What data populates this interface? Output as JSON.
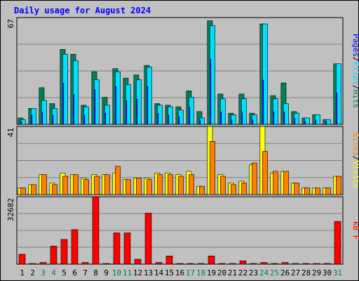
{
  "chart_data": {
    "type": "bar",
    "title": "Daily usage for August 2024",
    "categories": [
      "1",
      "2",
      "3",
      "4",
      "5",
      "6",
      "7",
      "8",
      "9",
      "10",
      "11",
      "12",
      "13",
      "14",
      "15",
      "16",
      "17",
      "18",
      "19",
      "20",
      "21",
      "22",
      "23",
      "24",
      "25",
      "26",
      "27",
      "28",
      "29",
      "30",
      "31"
    ],
    "weekend_days": [
      "3",
      "4",
      "10",
      "11",
      "17",
      "18",
      "24",
      "25",
      "31"
    ],
    "panels": [
      {
        "id": "hits-files-pages",
        "ylabel_parts": [
          "Pages",
          "/",
          "Files",
          "/",
          "Hits"
        ],
        "y_tick_label": "67",
        "ylim": [
          0,
          67
        ],
        "series": [
          {
            "name": "Hits",
            "color": "#00805c",
            "values": [
              4,
              10,
              23,
              13,
              47,
              44,
              12,
              33,
              17,
              35,
              29,
              31,
              37,
              13,
              12,
              11,
              21,
              8,
              65,
              19,
              7,
              19,
              7,
              63,
              18,
              26,
              8,
              4,
              6,
              3,
              38
            ]
          },
          {
            "name": "Files",
            "color": "#00e0ff",
            "values": [
              3,
              10,
              15,
              10,
              44,
              40,
              11,
              28,
              12,
              33,
              25,
              28,
              36,
              12,
              11,
              9,
              17,
              4,
              62,
              16,
              6,
              16,
              6,
              63,
              16,
              13,
              7,
              4,
              6,
              3,
              38
            ]
          },
          {
            "name": "Pages",
            "color": "#0000ff",
            "values": [
              2,
              6,
              8,
              6,
              26,
              19,
              6,
              22,
              7,
              24,
              15,
              16,
              24,
              7,
              6,
              5,
              11,
              3,
              41,
              8,
              3,
              8,
              3,
              28,
              8,
              8,
              4,
              2,
              3,
              2,
              20
            ]
          }
        ]
      },
      {
        "id": "visits-sites",
        "ylabel_parts": [
          "Sites",
          "/",
          "Visits"
        ],
        "y_tick_label": "41",
        "ylim": [
          0,
          41
        ],
        "series": [
          {
            "name": "Visits",
            "color": "#ffff00",
            "values": [
              4,
              6,
              12,
              7,
              13,
              12,
              10,
              12,
              12,
              13,
              9,
              10,
              10,
              13,
              13,
              12,
              14,
              5,
              41,
              12,
              7,
              8,
              18,
              41,
              13,
              14,
              7,
              4,
              4,
              4,
              11
            ]
          },
          {
            "name": "Sites",
            "color": "#ff8000",
            "values": [
              4,
              6,
              12,
              6,
              11,
              12,
              9,
              11,
              12,
              17,
              9,
              10,
              9,
              12,
              12,
              11,
              12,
              5,
              32,
              11,
              6,
              7,
              19,
              26,
              14,
              14,
              7,
              4,
              4,
              4,
              11
            ]
          }
        ]
      },
      {
        "id": "kbytes",
        "ylabel_parts": [
          "kB",
          " ",
          "F"
        ],
        "y_tick_label": "32682",
        "ylim": [
          0,
          41000
        ],
        "series": [
          {
            "name": "kB F",
            "color": "#ff0000",
            "values": [
              6000,
              0,
              1000,
              11000,
              15000,
              21000,
              1000,
              41000,
              0,
              19000,
              19000,
              3000,
              31000,
              1000,
              5000,
              0,
              0,
              0,
              5000,
              0,
              0,
              2000,
              0,
              1000,
              0,
              1000,
              0,
              0,
              0,
              0,
              26000
            ]
          }
        ]
      }
    ],
    "colors": {
      "title": "#0000ff",
      "background": "#c0c0c0",
      "plot_background": "#c0c0c0",
      "grid": "#808080",
      "axis_text": "#000000",
      "weekend_text": "#00805c",
      "bar_edge": "#000000"
    }
  }
}
